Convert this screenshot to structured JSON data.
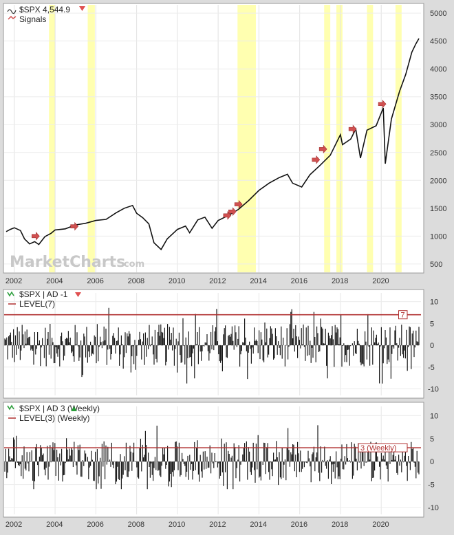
{
  "watermark": {
    "main": "MarketCharts",
    "suffix": ".com"
  },
  "colors": {
    "price": "#111111",
    "band": "#ffffb0",
    "level": "#b03030",
    "signal": "#d05050",
    "up": "#2a9d3a"
  },
  "chart_data": [
    {
      "type": "line",
      "title": "$SPX 4,544.9",
      "legend": [
        "$SPX 4,544.9",
        "Signals"
      ],
      "x_tick_labels": [
        "2002",
        "2004",
        "2006",
        "2008",
        "2010",
        "2012",
        "2014",
        "2016",
        "2018",
        "2020"
      ],
      "y_ticks": [
        500,
        1000,
        1500,
        2000,
        2500,
        3000,
        3500,
        4000,
        4500,
        5000
      ],
      "ylim": [
        350,
        5150
      ],
      "xlim": [
        2001.5,
        2021.95
      ],
      "grid": true,
      "legend_position": "top-left",
      "series": [
        {
          "name": "$SPX 4,544.9",
          "x": [
            2001.6,
            2001.8,
            2002.0,
            2002.3,
            2002.5,
            2002.75,
            2003.0,
            2003.2,
            2003.5,
            2003.8,
            2004.0,
            2004.5,
            2005.0,
            2005.5,
            2006.0,
            2006.5,
            2007.0,
            2007.4,
            2007.8,
            2008.0,
            2008.3,
            2008.6,
            2008.85,
            2009.2,
            2009.5,
            2010.0,
            2010.4,
            2010.6,
            2011.0,
            2011.35,
            2011.7,
            2012.0,
            2012.5,
            2013.0,
            2013.5,
            2014.0,
            2014.5,
            2015.0,
            2015.4,
            2015.65,
            2016.1,
            2016.5,
            2017.0,
            2017.5,
            2018.0,
            2018.1,
            2018.5,
            2018.75,
            2018.98,
            2019.3,
            2019.75,
            2020.1,
            2020.2,
            2020.5,
            2020.9,
            2021.2,
            2021.5,
            2021.7,
            2021.85
          ],
          "y": [
            1080,
            1120,
            1150,
            1100,
            950,
            860,
            900,
            850,
            990,
            1050,
            1110,
            1130,
            1200,
            1230,
            1280,
            1300,
            1420,
            1500,
            1550,
            1410,
            1330,
            1220,
            880,
            760,
            950,
            1120,
            1180,
            1060,
            1290,
            1340,
            1140,
            1280,
            1370,
            1480,
            1640,
            1820,
            1950,
            2050,
            2110,
            1950,
            1880,
            2100,
            2270,
            2450,
            2820,
            2640,
            2740,
            2920,
            2400,
            2900,
            2980,
            3300,
            2300,
            3100,
            3600,
            3900,
            4300,
            4450,
            4545
          ]
        },
        {
          "name": "Signals",
          "x": [
            2003.3,
            2005.2,
            2012.7,
            2012.95,
            2013.25,
            2017.05,
            2017.4,
            2018.85,
            2020.3
          ],
          "y": [
            1000,
            1175,
            1370,
            1440,
            1570,
            2370,
            2560,
            2920,
            3370
          ]
        }
      ],
      "shaded_x_ranges": [
        [
          2003.7,
          2004.0
        ],
        [
          2005.6,
          2005.95
        ],
        [
          2012.95,
          2013.85
        ],
        [
          2017.2,
          2017.5
        ],
        [
          2017.8,
          2018.1
        ],
        [
          2019.3,
          2019.6
        ],
        [
          2020.7,
          2021.0
        ]
      ]
    },
    {
      "type": "bar",
      "title": "$SPX | AD -1",
      "legend": [
        "$SPX | AD -1",
        "LEVEL(7)"
      ],
      "level": 7,
      "level_tag": "7",
      "y_ticks": [
        10,
        5,
        0,
        -5,
        -10
      ],
      "ylim": [
        -11.5,
        12
      ],
      "min_value": -9,
      "max_value": 9
    },
    {
      "type": "bar",
      "title": "$SPX | AD 3 (Weekly)",
      "legend": [
        "$SPX | AD 3 (Weekly)",
        "LEVEL(3) (Weekly)"
      ],
      "level": 3,
      "level_tag": "3 (Weekly)",
      "y_ticks": [
        10,
        5,
        0,
        -5,
        -10
      ],
      "ylim": [
        -11.5,
        12
      ],
      "min_value": -6,
      "max_value": 8
    }
  ]
}
